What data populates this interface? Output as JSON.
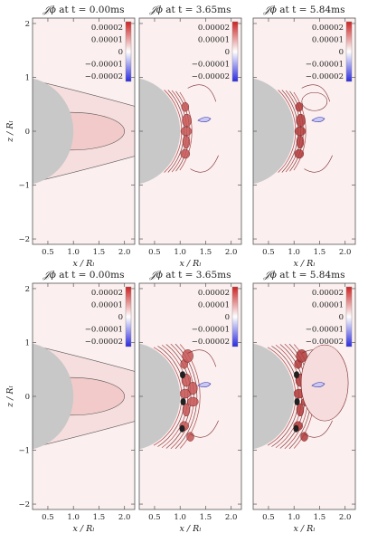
{
  "chart_data": {
    "type": "heatmap",
    "symbol": "𝒥ϕ",
    "xlabel": "x / Rₗ",
    "ylabel": "z / Rₗ",
    "xticks": [
      "0.5",
      "1.0",
      "1.5",
      "2.0"
    ],
    "yticks": [
      "−2",
      "−1",
      "0",
      "1",
      "2"
    ],
    "xlim": [
      0.2,
      2.2
    ],
    "ylim": [
      -2.1,
      2.1
    ],
    "colorbar": {
      "labels": [
        "0.00002",
        "0.00001",
        "0",
        "−0.00001",
        "−0.00002"
      ],
      "values": [
        2e-05,
        1e-05,
        0,
        -1e-05,
        -2e-05
      ],
      "colors": [
        "#cc2222",
        "#ffffff",
        "#2a2ae0"
      ]
    },
    "star": {
      "radius": 1.0,
      "color": "#c8c8c8"
    },
    "background_color": "#fbefef",
    "panels": [
      {
        "row": 0,
        "col": 0,
        "title": "at t = 0.00ms",
        "time_ms": 0.0
      },
      {
        "row": 0,
        "col": 1,
        "title": "at t = 3.65ms",
        "time_ms": 3.65
      },
      {
        "row": 0,
        "col": 2,
        "title": "at t = 5.84ms",
        "time_ms": 5.84
      },
      {
        "row": 1,
        "col": 0,
        "title": "at t = 0.00ms",
        "time_ms": 0.0
      },
      {
        "row": 1,
        "col": 1,
        "title": "at t = 3.65ms",
        "time_ms": 3.65
      },
      {
        "row": 1,
        "col": 2,
        "title": "at t = 5.84ms",
        "time_ms": 5.84
      }
    ]
  }
}
